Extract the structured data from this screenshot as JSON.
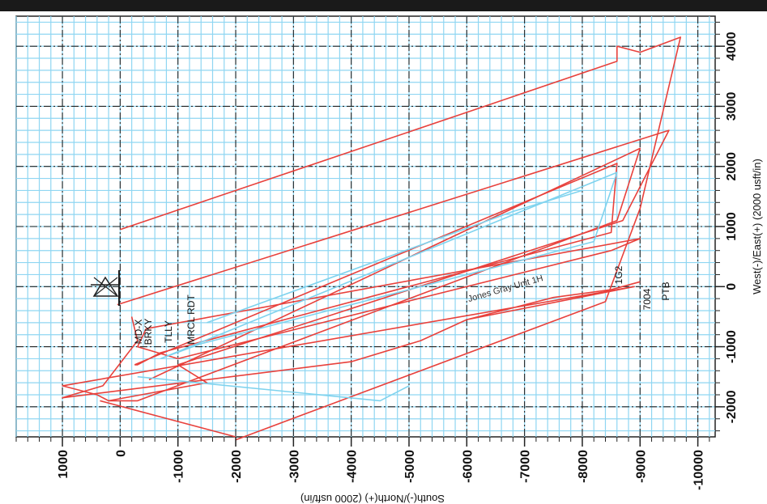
{
  "chart_data": {
    "type": "line",
    "xlabel": "South(-)/North(+) (2000 usft/in)",
    "ylabel": "West(-)/East(+) (2000 usft/in)",
    "xlim": [
      1800,
      -10300
    ],
    "ylim": [
      -2500,
      4500
    ],
    "x_ticks": [
      1000,
      0,
      -1000,
      -2000,
      -3000,
      -4000,
      -5000,
      -6000,
      -7000,
      -8000,
      -9000,
      -10000
    ],
    "x_tick_labels": [
      "1000",
      "0",
      "-1000",
      "-2000",
      "-3000",
      "-4000",
      "-5000",
      "-6000",
      "-7000",
      "-8000",
      "-9000",
      "-10000"
    ],
    "y_ticks": [
      4000,
      3000,
      2000,
      1000,
      0,
      -1000,
      -2000
    ],
    "y_tick_labels": [
      "4000",
      "3000",
      "2000",
      "1000",
      "0",
      "-1000",
      "-2000"
    ],
    "grid": true,
    "series": [
      {
        "color": "#e8413c",
        "points": [
          [
            0,
            950
          ],
          [
            -6000,
            2900
          ],
          [
            -8600,
            3750
          ],
          [
            -8600,
            4000
          ],
          [
            -9000,
            3900
          ],
          [
            -9700,
            4150
          ],
          [
            -9000,
            1300
          ],
          [
            -8400,
            -250
          ],
          [
            -2000,
            -2550
          ]
        ]
      },
      {
        "color": "#e8413c",
        "points": [
          [
            50,
            -300
          ],
          [
            -9500,
            2600
          ],
          [
            -8700,
            1100
          ],
          [
            -1000,
            -1300
          ],
          [
            -1500,
            -1600
          ],
          [
            200,
            -1900
          ],
          [
            400,
            -1800
          ],
          [
            1000,
            -1650
          ],
          [
            -8900,
            0
          ],
          [
            -6000,
            -550
          ],
          [
            -7500,
            -180
          ],
          [
            -8500,
            -50
          ],
          [
            -9000,
            80
          ]
        ]
      },
      {
        "color": "#e8413c",
        "points": [
          [
            -500,
            -1550
          ],
          [
            -9000,
            2300
          ],
          [
            -8600,
            1100
          ],
          [
            -300,
            -1900
          ],
          [
            200,
            -1900
          ]
        ]
      },
      {
        "color": "#e8413c",
        "points": [
          [
            -250,
            -1300
          ],
          [
            -8600,
            2050
          ],
          [
            -8500,
            900
          ],
          [
            -700,
            -1100
          ],
          [
            -300,
            -1300
          ],
          [
            -250,
            -1300
          ]
        ]
      },
      {
        "color": "#e8413c",
        "points": [
          [
            -200,
            -500
          ],
          [
            -300,
            -900
          ],
          [
            300,
            -1650
          ],
          [
            1000,
            -1850
          ],
          [
            -4000,
            -1250
          ],
          [
            -5200,
            -900
          ],
          [
            -6000,
            -550
          ]
        ]
      },
      {
        "color": "#e8413c",
        "points": [
          [
            -450,
            -700
          ],
          [
            -9000,
            800
          ],
          [
            -8500,
            600
          ],
          [
            -1000,
            -1200
          ],
          [
            -300,
            -1000
          ],
          [
            -450,
            -700
          ]
        ]
      },
      {
        "color": "#e8413c",
        "points": [
          [
            350,
            -1900
          ],
          [
            -2000,
            -2500
          ]
        ]
      },
      {
        "color": "#7fd3ee",
        "points": [
          [
            -700,
            -1200
          ],
          [
            -8600,
            1900
          ],
          [
            -8200,
            750
          ],
          [
            -1400,
            -950
          ],
          [
            -700,
            -1200
          ]
        ]
      },
      {
        "color": "#7fd3ee",
        "points": [
          [
            -300,
            -1500
          ],
          [
            -4500,
            -1900
          ],
          [
            -5000,
            -1650
          ]
        ]
      },
      {
        "color": "#7fd3ee",
        "points": [
          [
            -1500,
            -600
          ],
          [
            -6800,
            1250
          ],
          [
            -8000,
            1600
          ]
        ]
      }
    ],
    "annotations": [
      "MD-X",
      "BRKY",
      "TLLY",
      "MRCL RDT",
      "Jones Gray Unit 1H",
      "1G2",
      "7004",
      "PTB"
    ]
  }
}
